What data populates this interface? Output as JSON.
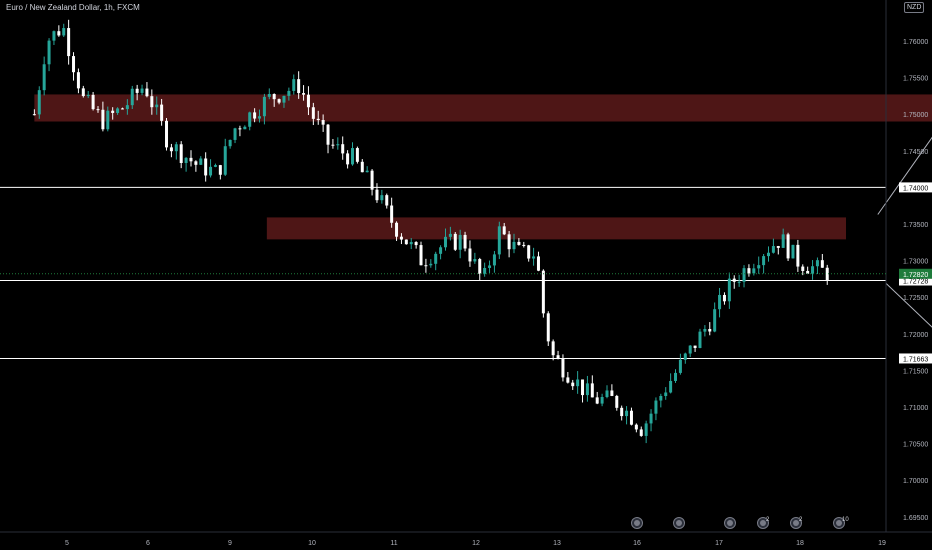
{
  "header": {
    "title": "Euro / New Zealand Dollar, 1h, FXCM",
    "currency_badge": "NZD"
  },
  "colors": {
    "background": "#000000",
    "up_candle": "#26a69a",
    "down_candle": "#ffffff",
    "zone_fill": "#5c1a1a",
    "line": "#ffffff",
    "axis_text": "#b2b5be",
    "price_badge_bg": "#1e7b3b"
  },
  "chart_data": {
    "type": "candlestick",
    "symbol": "Euro / New Zealand Dollar",
    "timeframe": "1h",
    "broker": "FXCM",
    "x_ticks": [
      "5",
      "6",
      "9",
      "10",
      "11",
      "12",
      "13",
      "16",
      "17",
      "18",
      "19"
    ],
    "y_ticks": [
      "1.76000",
      "1.75500",
      "1.75000",
      "1.74500",
      "1.74000",
      "1.73500",
      "1.73000",
      "1.72500",
      "1.72000",
      "1.71500",
      "1.71000",
      "1.70500",
      "1.70000",
      "1.69500"
    ],
    "y_tick_values": [
      1.76,
      1.755,
      1.75,
      1.745,
      1.74,
      1.735,
      1.73,
      1.725,
      1.72,
      1.715,
      1.71,
      1.705,
      1.7,
      1.695
    ],
    "ylim": [
      1.6937,
      1.7678
    ],
    "x_range_days": [
      4.6,
      19.0
    ],
    "horizontal_lines": [
      {
        "value": 1.74,
        "label": "1.74000"
      },
      {
        "value": 1.72728,
        "label": "1.72728"
      },
      {
        "value": 1.71663,
        "label": "1.71663"
      }
    ],
    "current_price": {
      "value": 1.7282,
      "label": "1.72820"
    },
    "zones": [
      {
        "x_from": 4.6,
        "x_to": 18.98,
        "y_low": 1.749,
        "y_high": 1.7527
      },
      {
        "x_from": 7.45,
        "x_to": 14.55,
        "y_low": 1.7329,
        "y_high": 1.7359
      }
    ],
    "arrows": [
      {
        "from": [
          14.94,
          1.7363
        ],
        "to": [
          15.68,
          1.748
        ]
      },
      {
        "from": [
          15.04,
          1.7269
        ],
        "to": [
          15.88,
          1.718
        ]
      }
    ],
    "event_markers": [
      {
        "day": 14.0,
        "label": ""
      },
      {
        "day": 15.0,
        "label": ""
      },
      {
        "day": 16.1,
        "label": ""
      },
      {
        "day": 16.5,
        "label": "2"
      },
      {
        "day": 17.06,
        "label": "2"
      },
      {
        "day": 17.9,
        "label": "10"
      }
    ],
    "pivots": [
      [
        4.6,
        1.75
      ],
      [
        4.75,
        1.76
      ],
      [
        4.95,
        1.762
      ],
      [
        5.2,
        1.752
      ],
      [
        5.45,
        1.749
      ],
      [
        5.7,
        1.751
      ],
      [
        5.95,
        1.754
      ],
      [
        6.25,
        1.746
      ],
      [
        6.6,
        1.743
      ],
      [
        6.85,
        1.742
      ],
      [
        7.05,
        1.748
      ],
      [
        7.45,
        1.752
      ],
      [
        7.85,
        1.754
      ],
      [
        8.0,
        1.75
      ],
      [
        8.2,
        1.746
      ],
      [
        8.5,
        1.744
      ],
      [
        8.8,
        1.739
      ],
      [
        9.0,
        1.735
      ],
      [
        9.35,
        1.73
      ],
      [
        9.6,
        1.732
      ],
      [
        9.85,
        1.733
      ],
      [
        10.1,
        1.727
      ],
      [
        10.3,
        1.734
      ],
      [
        10.55,
        1.731
      ],
      [
        10.75,
        1.731
      ],
      [
        10.85,
        1.722
      ],
      [
        10.95,
        1.717
      ],
      [
        11.2,
        1.714
      ],
      [
        11.45,
        1.711
      ],
      [
        11.7,
        1.711
      ],
      [
        11.9,
        1.709
      ],
      [
        12.05,
        1.707
      ],
      [
        12.3,
        1.712
      ],
      [
        12.6,
        1.717
      ],
      [
        12.9,
        1.722
      ],
      [
        13.15,
        1.727
      ],
      [
        13.5,
        1.731
      ],
      [
        13.75,
        1.733
      ],
      [
        13.95,
        1.73
      ],
      [
        14.15,
        1.729
      ],
      [
        14.35,
        1.7282
      ]
    ]
  }
}
